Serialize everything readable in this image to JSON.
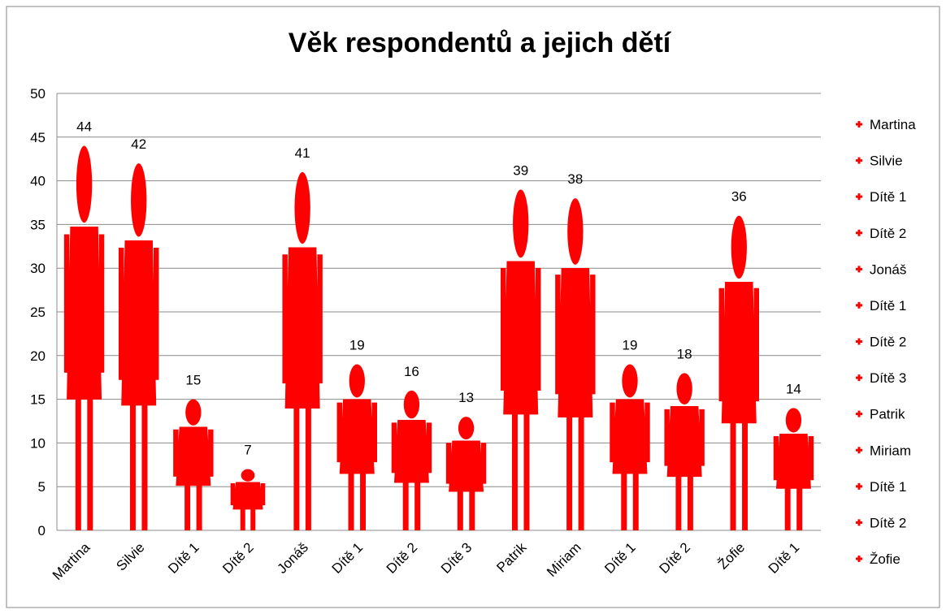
{
  "chart_data": {
    "type": "pictograph",
    "title": "Věk respondentů a jejich dětí",
    "categories": [
      "Martina",
      "Silvie",
      "Dítě 1",
      "Dítě 2",
      "Jonáš",
      "Dítě 1",
      "Dítě 2",
      "Dítě 3",
      "Patrik",
      "Miriam",
      "Dítě 1",
      "Dítě 2",
      "Žofie",
      "Dítě 1"
    ],
    "values": [
      44,
      42,
      15,
      7,
      41,
      19,
      16,
      13,
      39,
      38,
      19,
      18,
      36,
      14
    ],
    "color": "#ff0000",
    "ylim": [
      0,
      50
    ],
    "yticks": [
      0,
      5,
      10,
      15,
      20,
      25,
      30,
      35,
      40,
      45,
      50
    ],
    "grid": true,
    "legend": [
      "Martina",
      "Silvie",
      "Dítě 1",
      "Dítě 2",
      "Jonáš",
      "Dítě 1",
      "Dítě 2",
      "Dítě 3",
      "Patrik",
      "Miriam",
      "Dítě 1",
      "Dítě 2",
      "Žofie"
    ],
    "legend_position": "right"
  }
}
